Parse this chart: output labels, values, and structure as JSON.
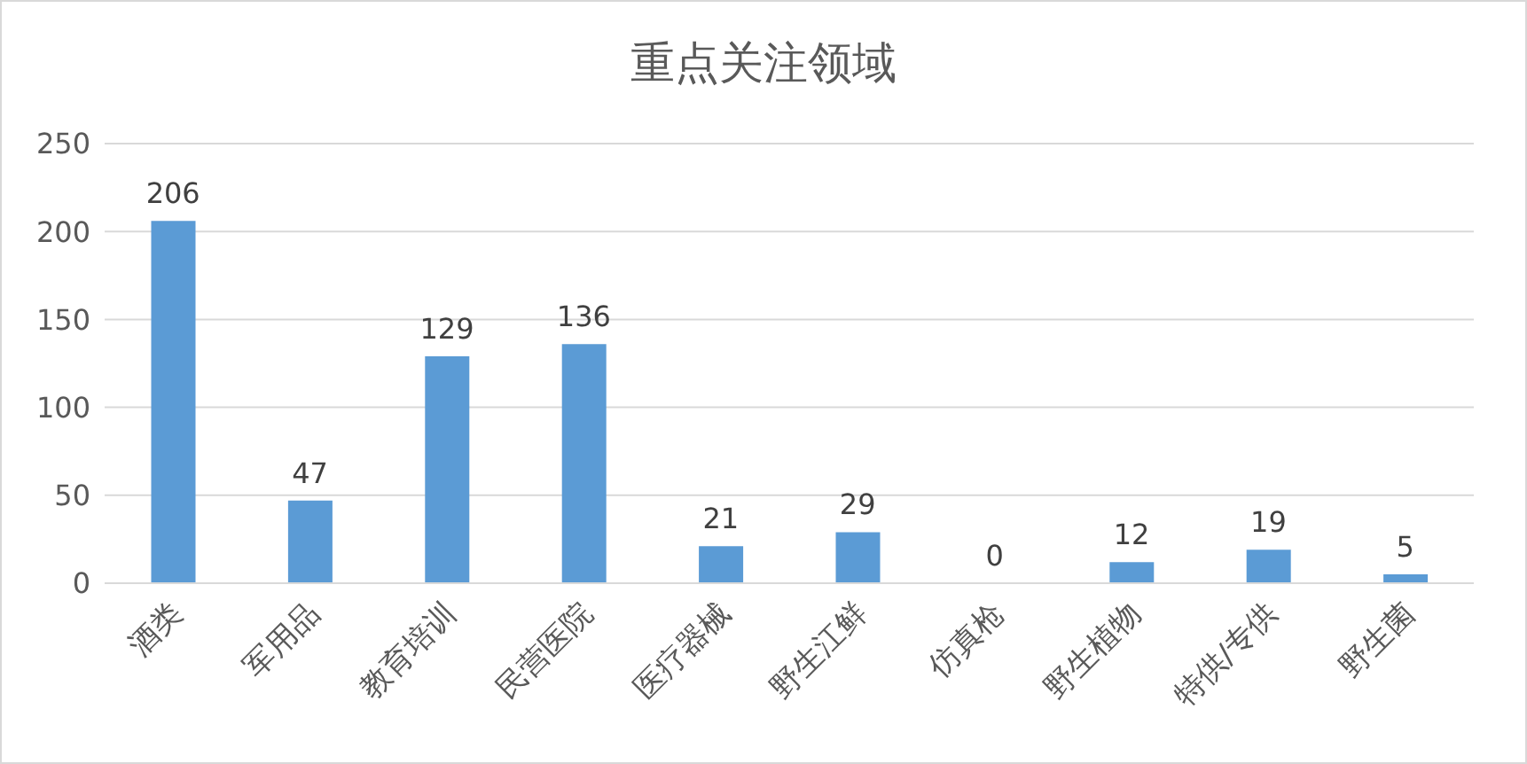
{
  "chart_data": {
    "type": "bar",
    "title": "重点关注领域",
    "categories": [
      "酒类",
      "军用品",
      "教育培训",
      "民营医院",
      "医疗器械",
      "野生江鲜",
      "仿真枪",
      "野生植物",
      "特供/专供",
      "野生菌"
    ],
    "values": [
      206,
      47,
      129,
      136,
      21,
      29,
      0,
      12,
      19,
      5
    ],
    "color": "#5b9bd5",
    "ylim": [
      0,
      250
    ],
    "yticks": [
      0,
      50,
      100,
      150,
      200,
      250
    ],
    "grid": "y",
    "data_labels": true
  }
}
